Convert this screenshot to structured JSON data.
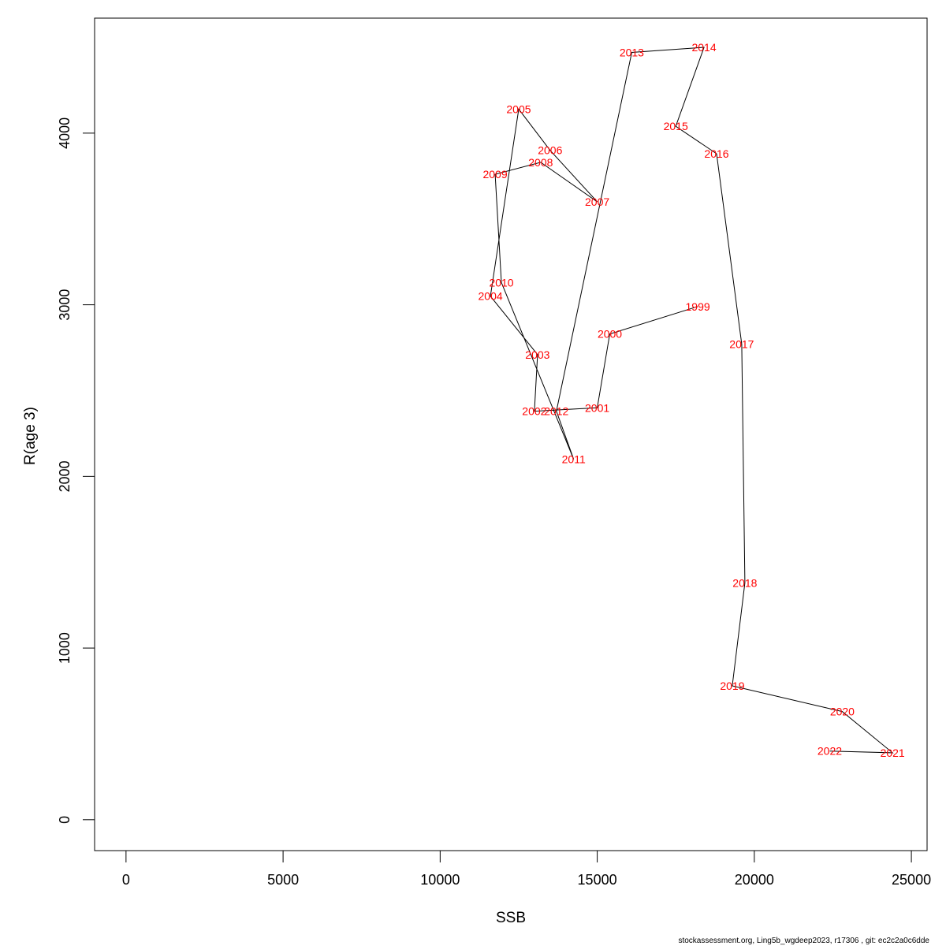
{
  "chart_data": {
    "type": "line",
    "title": "",
    "xlabel": "SSB",
    "ylabel": "R(age 3)",
    "xlim": [
      -1000,
      25500
    ],
    "ylim": [
      -180,
      4670
    ],
    "x_ticks": [
      0,
      5000,
      10000,
      15000,
      20000,
      25000
    ],
    "y_ticks": [
      0,
      1000,
      2000,
      3000,
      4000
    ],
    "grid": false,
    "label_color": "#ff0000",
    "line_color": "#000000",
    "points": [
      {
        "label": "1999",
        "x": 18200,
        "y": 2990
      },
      {
        "label": "2000",
        "x": 15400,
        "y": 2830
      },
      {
        "label": "2001",
        "x": 15000,
        "y": 2400
      },
      {
        "label": "2002",
        "x": 13000,
        "y": 2380
      },
      {
        "label": "2003",
        "x": 13100,
        "y": 2710
      },
      {
        "label": "2004",
        "x": 11600,
        "y": 3050
      },
      {
        "label": "2005",
        "x": 12500,
        "y": 4140
      },
      {
        "label": "2006",
        "x": 13500,
        "y": 3900
      },
      {
        "label": "2007",
        "x": 15000,
        "y": 3600
      },
      {
        "label": "2008",
        "x": 13200,
        "y": 3830
      },
      {
        "label": "2009",
        "x": 11750,
        "y": 3760
      },
      {
        "label": "2010",
        "x": 11950,
        "y": 3130
      },
      {
        "label": "2011",
        "x": 14250,
        "y": 2100
      },
      {
        "label": "2012",
        "x": 13700,
        "y": 2380
      },
      {
        "label": "2013",
        "x": 16100,
        "y": 4470
      },
      {
        "label": "2014",
        "x": 18400,
        "y": 4500
      },
      {
        "label": "2015",
        "x": 17500,
        "y": 4040
      },
      {
        "label": "2016",
        "x": 18800,
        "y": 3880
      },
      {
        "label": "2017",
        "x": 19600,
        "y": 2770
      },
      {
        "label": "2018",
        "x": 19700,
        "y": 1380
      },
      {
        "label": "2019",
        "x": 19300,
        "y": 780
      },
      {
        "label": "2020",
        "x": 22800,
        "y": 630
      },
      {
        "label": "2021",
        "x": 24400,
        "y": 390
      },
      {
        "label": "2022",
        "x": 22400,
        "y": 400
      }
    ]
  },
  "footer": {
    "text": "stockassessment.org, Ling5b_wgdeep2023, r17306 , git: ec2c2a0c6dde"
  }
}
